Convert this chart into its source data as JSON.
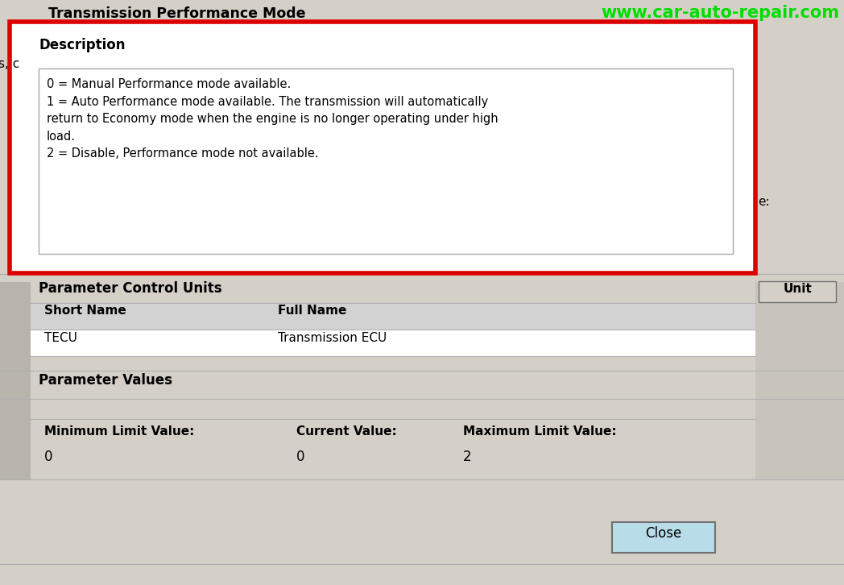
{
  "bg_color": "#d4d0c8",
  "white": "#ffffff",
  "black": "#000000",
  "gray_line": "#b0b0b0",
  "dark_gray": "#707070",
  "mid_gray": "#c0c0c0",
  "header_gray": "#d0d0d0",
  "title": "Transmission Performance Mode",
  "title_fontsize": 12.5,
  "watermark": "www.car-auto-repair.com",
  "watermark_color": "#00dd00",
  "watermark_fontsize": 15,
  "description_label": "Description",
  "description_text": "0 = Manual Performance mode available.\n1 = Auto Performance mode available. The transmission will automatically\nreturn to Economy mode when the engine is no longer operating under high\nload.\n2 = Disable, Performance mode not available.",
  "red_border_color": "#dd0000",
  "red_border_lw": 4,
  "section2_title": "Parameter Control Units",
  "table_header_bg": "#d2d2d2",
  "table_row_bg": "#ffffff",
  "table_header_short": "Short Name",
  "table_header_full": "Full Name",
  "table_row_short": "TECU",
  "table_row_full": "Transmission ECU",
  "unit_button_text": "Unit",
  "unit_button_bg": "#d4d0c8",
  "section3_title": "Parameter Values",
  "min_label": "Minimum Limit Value:",
  "min_value": "0",
  "cur_label": "Current Value:",
  "cur_value": "0",
  "max_label": "Maximum Limit Value:",
  "max_value": "2",
  "close_button_text": "Close",
  "close_button_bg": "#b8dce8",
  "left_partial_text": "s, c",
  "right_partial_text": "e:",
  "left_bar_color": "#b8b4ac",
  "right_col_color": "#c8c4bc"
}
